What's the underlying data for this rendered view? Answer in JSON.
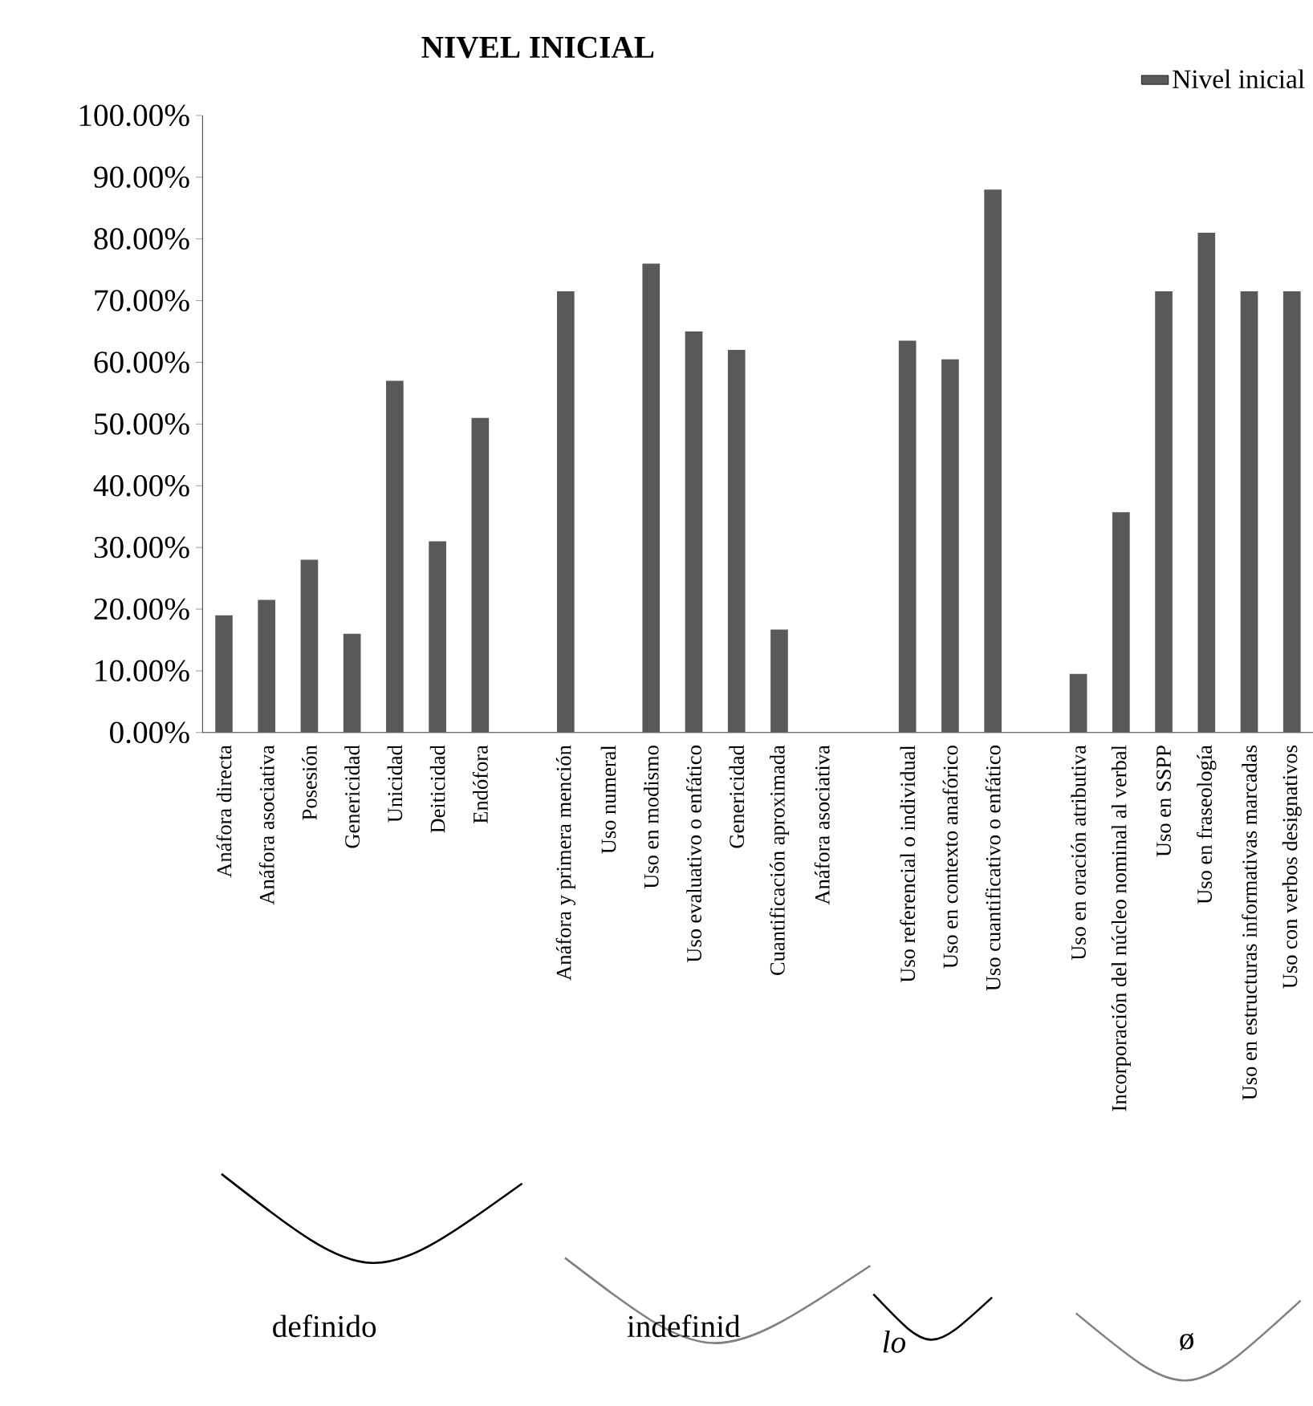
{
  "chart_data": {
    "type": "bar",
    "title": "NIVEL INICIAL",
    "categories": [
      "Anáfora directa",
      "Anáfora asociativa",
      "Posesión",
      "Genericidad",
      "Unicidad",
      "Deiticidad",
      "Endófora",
      null,
      "Anáfora y primera mención",
      "Uso numeral",
      "Uso en modismo",
      "Uso evaluativo o enfático",
      "Genericidad",
      "Cuantificación aproximada",
      "Anáfora asociativa",
      null,
      "Uso referencial o individual",
      "Uso en contexto anafórico",
      "Uso cuantificativo o enfático",
      null,
      "Uso en oración atributiva",
      "Incorporación del núcleo nominal al verbal",
      "Uso en SSPP",
      "Uso en fraseología",
      "Uso en estructuras informativas marcadas",
      "Uso con verbos designativos"
    ],
    "series": [
      {
        "name": "Nivel inicial",
        "color": "#595959",
        "values": [
          19,
          21.5,
          28,
          16,
          57,
          31,
          51,
          null,
          71.5,
          0,
          76,
          65,
          62,
          16.7,
          0,
          null,
          63.5,
          60.5,
          88,
          null,
          9.5,
          35.7,
          71.5,
          81,
          71.5,
          71.5
        ]
      }
    ],
    "ylim": [
      0,
      100
    ],
    "yticks": [
      {
        "value": 0,
        "label": "0.00%"
      },
      {
        "value": 10,
        "label": "10.00%"
      },
      {
        "value": 20,
        "label": "20.00%"
      },
      {
        "value": 30,
        "label": "30.00%"
      },
      {
        "value": 40,
        "label": "40.00%"
      },
      {
        "value": 50,
        "label": "50.00%"
      },
      {
        "value": 60,
        "label": "60.00%"
      },
      {
        "value": 70,
        "label": "70.00%"
      },
      {
        "value": 80,
        "label": "80.00%"
      },
      {
        "value": 90,
        "label": "90.00%"
      },
      {
        "value": 100,
        "label": "100.00%"
      }
    ],
    "legend": "top right",
    "grid": false,
    "annotations": [
      "definido",
      "indefinid",
      "*lo*",
      "ø"
    ]
  }
}
